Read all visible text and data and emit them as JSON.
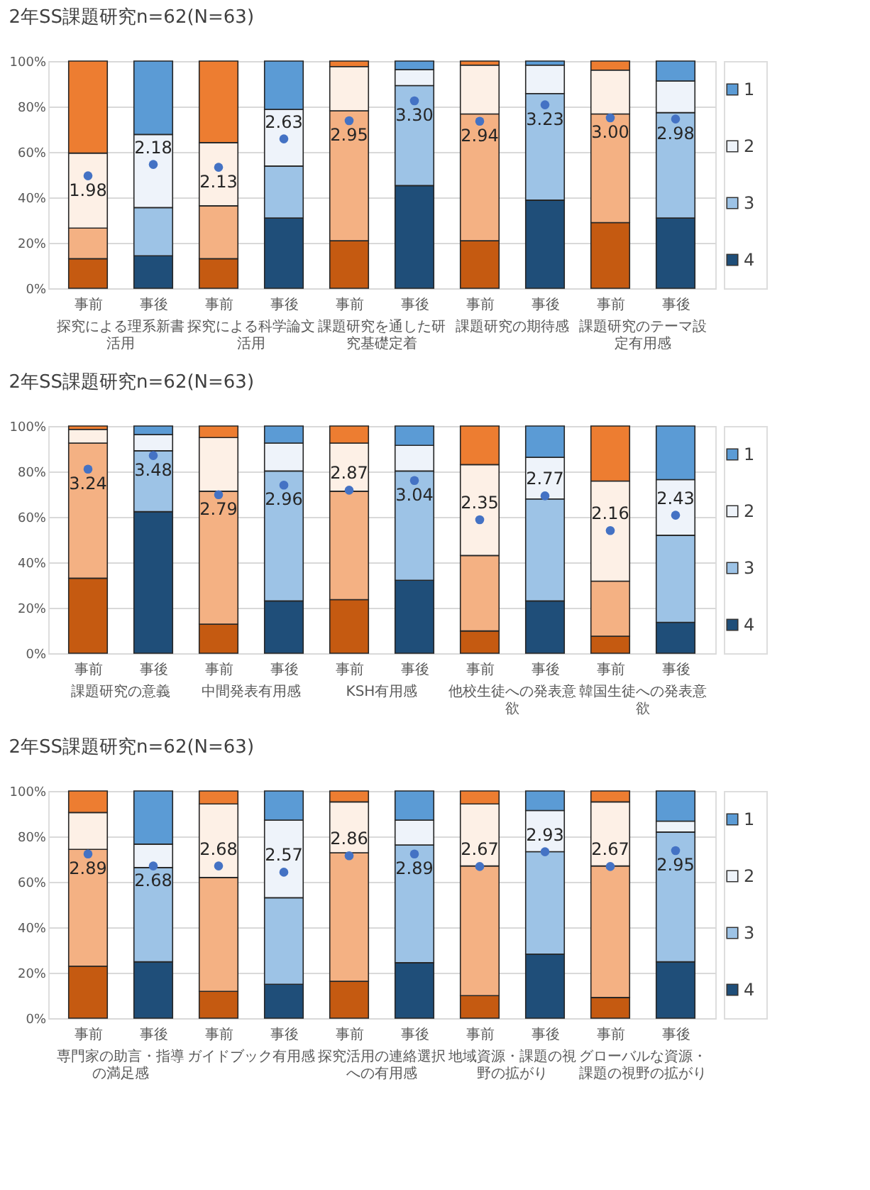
{
  "chart_data": [
    {
      "type": "bar",
      "title": "2年SS課題研究n=62(N=63)",
      "stacked": true,
      "legend": "right",
      "grid": "y",
      "categories": [
        "事前",
        "事後",
        "事前",
        "事後",
        "事前",
        "事後",
        "事前",
        "事後",
        "事前",
        "事後"
      ],
      "annotations": [
        "探究による理系新書活用",
        "探究による科学論文活用",
        "課題研究を通した研究基礎定着",
        "課題研究の期待感",
        "課題研究のテーマ設定有用感"
      ],
      "ylim": [
        0,
        100
      ],
      "yticks": [
        {
          "value": 0,
          "label": "0%"
        },
        {
          "value": 20,
          "label": "20%"
        },
        {
          "value": 40,
          "label": "40%"
        },
        {
          "value": 60,
          "label": "60%"
        },
        {
          "value": 80,
          "label": "80%"
        },
        {
          "value": 100,
          "label": "100%"
        }
      ],
      "y2lim": [
        0,
        4
      ],
      "series": [
        {
          "name": "4",
          "color": "#1f4e79",
          "colors": [
            "#c55a11",
            "#1f4e79",
            "#c55a11",
            "#1f4e79",
            "#c55a11",
            "#1f4e79",
            "#c55a11",
            "#1f4e79",
            "#c55a11",
            "#1f4e79"
          ],
          "values": [
            13,
            14.3,
            13,
            30.9,
            20.9,
            45.2,
            20.9,
            38.8,
            28.9,
            30.9
          ]
        },
        {
          "name": "3",
          "color": "#9dc3e6",
          "colors": [
            "#f4b183",
            "#9dc3e6",
            "#f4b183",
            "#9dc3e6",
            "#f4b183",
            "#9dc3e6",
            "#f4b183",
            "#9dc3e6",
            "#f4b183",
            "#9dc3e6"
          ],
          "values": [
            13.5,
            21.2,
            23.3,
            22.9,
            57.2,
            44,
            55.8,
            46.9,
            47.8,
            46.4
          ]
        },
        {
          "name": "2",
          "color": "#eef3fa",
          "colors": [
            "#fdf0e6",
            "#eef3fa",
            "#fdf0e6",
            "#eef3fa",
            "#fdf0e6",
            "#eef3fa",
            "#fdf0e6",
            "#eef3fa",
            "#fdf0e6",
            "#eef3fa"
          ],
          "values": [
            33,
            32.2,
            27.8,
            24.9,
            19.5,
            7,
            21.5,
            12.5,
            19.3,
            13.9
          ]
        },
        {
          "name": "1",
          "color": "#5b9bd5",
          "colors": [
            "#ed7d31",
            "#5b9bd5",
            "#ed7d31",
            "#5b9bd5",
            "#ed7d31",
            "#5b9bd5",
            "#ed7d31",
            "#5b9bd5",
            "#ed7d31",
            "#5b9bd5"
          ],
          "values": [
            40.5,
            32.3,
            35.9,
            21.3,
            2.4,
            3.8,
            1.8,
            1.8,
            4,
            8.8
          ]
        },
        {
          "type": "scatter",
          "axis": "y2",
          "marker": "circle",
          "color": "#4472c4",
          "values": [
            1.98,
            2.18,
            2.13,
            2.63,
            2.95,
            3.3,
            2.94,
            3.23,
            3.0,
            2.98
          ],
          "value_labels": [
            "1.98",
            "2.18",
            "2.13",
            "2.63",
            "2.95",
            "3.30",
            "2.94",
            "3.23",
            "3.00",
            "2.98"
          ]
        }
      ]
    },
    {
      "type": "bar",
      "title": "2年SS課題研究n=62(N=63)",
      "stacked": true,
      "legend": "right",
      "grid": "y",
      "categories": [
        "事前",
        "事後",
        "事前",
        "事後",
        "事前",
        "事後",
        "事前",
        "事後",
        "事前",
        "事後"
      ],
      "annotations": [
        "課題研究の意義",
        "中間発表有用感",
        "KSH有用感",
        "他校生徒への発表意欲",
        "韓国生徒への発表意欲"
      ],
      "ylim": [
        0,
        100
      ],
      "yticks": [
        {
          "value": 0,
          "label": "0%"
        },
        {
          "value": 20,
          "label": "20%"
        },
        {
          "value": 40,
          "label": "40%"
        },
        {
          "value": 60,
          "label": "60%"
        },
        {
          "value": 80,
          "label": "80%"
        },
        {
          "value": 100,
          "label": "100%"
        }
      ],
      "y2lim": [
        0,
        4
      ],
      "series": [
        {
          "name": "4",
          "color": "#1f4e79",
          "colors": [
            "#c55a11",
            "#1f4e79",
            "#c55a11",
            "#1f4e79",
            "#c55a11",
            "#1f4e79",
            "#c55a11",
            "#1f4e79",
            "#c55a11",
            "#1f4e79"
          ],
          "values": [
            33,
            62.3,
            12.8,
            23,
            23.6,
            32.1,
            9.8,
            23,
            7.5,
            13.6
          ]
        },
        {
          "name": "3",
          "color": "#9dc3e6",
          "colors": [
            "#f4b183",
            "#9dc3e6",
            "#f4b183",
            "#9dc3e6",
            "#f4b183",
            "#9dc3e6",
            "#f4b183",
            "#9dc3e6",
            "#f4b183",
            "#9dc3e6"
          ],
          "values": [
            59.5,
            26.8,
            58.5,
            57.2,
            47.7,
            48.1,
            33.2,
            44.9,
            24.2,
            38.3
          ]
        },
        {
          "name": "2",
          "color": "#eef3fa",
          "colors": [
            "#fdf0e6",
            "#eef3fa",
            "#fdf0e6",
            "#eef3fa",
            "#fdf0e6",
            "#eef3fa",
            "#fdf0e6",
            "#eef3fa",
            "#fdf0e6",
            "#eef3fa"
          ],
          "values": [
            6,
            7.1,
            23.6,
            12.3,
            21.2,
            11.3,
            40,
            18.3,
            44.1,
            24.5
          ]
        },
        {
          "name": "1",
          "color": "#5b9bd5",
          "colors": [
            "#ed7d31",
            "#5b9bd5",
            "#ed7d31",
            "#5b9bd5",
            "#ed7d31",
            "#5b9bd5",
            "#ed7d31",
            "#5b9bd5",
            "#ed7d31",
            "#5b9bd5"
          ],
          "values": [
            1.5,
            3.8,
            5.1,
            7.5,
            7.5,
            8.5,
            17,
            13.8,
            24.2,
            23.6
          ]
        },
        {
          "type": "scatter",
          "axis": "y2",
          "marker": "circle",
          "color": "#4472c4",
          "values": [
            3.24,
            3.48,
            2.79,
            2.96,
            2.87,
            3.04,
            2.35,
            2.77,
            2.16,
            2.43
          ],
          "value_labels": [
            "3.24",
            "3.48",
            "2.79",
            "2.96",
            "2.87",
            "3.04",
            "2.35",
            "2.77",
            "2.16",
            "2.43"
          ]
        }
      ]
    },
    {
      "type": "bar",
      "title": "2年SS課題研究n=62(N=63)",
      "stacked": true,
      "legend": "right",
      "grid": "y",
      "categories": [
        "事前",
        "事後",
        "事前",
        "事後",
        "事前",
        "事後",
        "事前",
        "事後",
        "事前",
        "事後"
      ],
      "annotations": [
        "専門家の助言・指導の満足感",
        "ガイドブック有用感",
        "探究活用の連絡選択への有用感",
        "地域資源・課題の視野の拡がり",
        "グローバルな資源・課題の視野の拡がり"
      ],
      "ylim": [
        0,
        100
      ],
      "yticks": [
        {
          "value": 0,
          "label": "0%"
        },
        {
          "value": 20,
          "label": "20%"
        },
        {
          "value": 40,
          "label": "40%"
        },
        {
          "value": 60,
          "label": "60%"
        },
        {
          "value": 80,
          "label": "80%"
        },
        {
          "value": 100,
          "label": "100%"
        }
      ],
      "y2lim": [
        0,
        4
      ],
      "series": [
        {
          "name": "4",
          "color": "#1f4e79",
          "colors": [
            "#c55a11",
            "#1f4e79",
            "#c55a11",
            "#1f4e79",
            "#c55a11",
            "#1f4e79",
            "#c55a11",
            "#1f4e79",
            "#c55a11",
            "#1f4e79"
          ],
          "values": [
            22.9,
            24.8,
            11.8,
            14.9,
            16.2,
            24.4,
            9.9,
            28.2,
            9.1,
            24.8
          ]
        },
        {
          "name": "3",
          "color": "#9dc3e6",
          "colors": [
            "#f4b183",
            "#9dc3e6",
            "#f4b183",
            "#9dc3e6",
            "#f4b183",
            "#9dc3e6",
            "#f4b183",
            "#9dc3e6",
            "#f4b183",
            "#9dc3e6"
          ],
          "values": [
            51.4,
            41.5,
            50.1,
            38.1,
            56.6,
            51.8,
            57.1,
            45.1,
            57.9,
            57.1
          ]
        },
        {
          "name": "2",
          "color": "#eef3fa",
          "colors": [
            "#fdf0e6",
            "#eef3fa",
            "#fdf0e6",
            "#eef3fa",
            "#fdf0e6",
            "#eef3fa",
            "#fdf0e6",
            "#eef3fa",
            "#fdf0e6",
            "#eef3fa"
          ],
          "values": [
            16.2,
            10.3,
            32.4,
            34.2,
            22.4,
            11,
            27.3,
            18.1,
            28.2,
            4.8
          ]
        },
        {
          "name": "1",
          "color": "#5b9bd5",
          "colors": [
            "#ed7d31",
            "#5b9bd5",
            "#ed7d31",
            "#5b9bd5",
            "#ed7d31",
            "#5b9bd5",
            "#ed7d31",
            "#5b9bd5",
            "#ed7d31",
            "#5b9bd5"
          ],
          "values": [
            9.5,
            23.4,
            5.7,
            12.8,
            4.8,
            12.8,
            5.7,
            8.6,
            4.8,
            13.3
          ]
        },
        {
          "type": "scatter",
          "axis": "y2",
          "marker": "circle",
          "color": "#4472c4",
          "values": [
            2.89,
            2.68,
            2.68,
            2.57,
            2.86,
            2.89,
            2.67,
            2.93,
            2.67,
            2.95
          ],
          "value_labels": [
            "2.89",
            "2.68",
            "2.68",
            "2.57",
            "2.86",
            "2.89",
            "2.67",
            "2.93",
            "2.67",
            "2.95"
          ]
        }
      ]
    }
  ]
}
